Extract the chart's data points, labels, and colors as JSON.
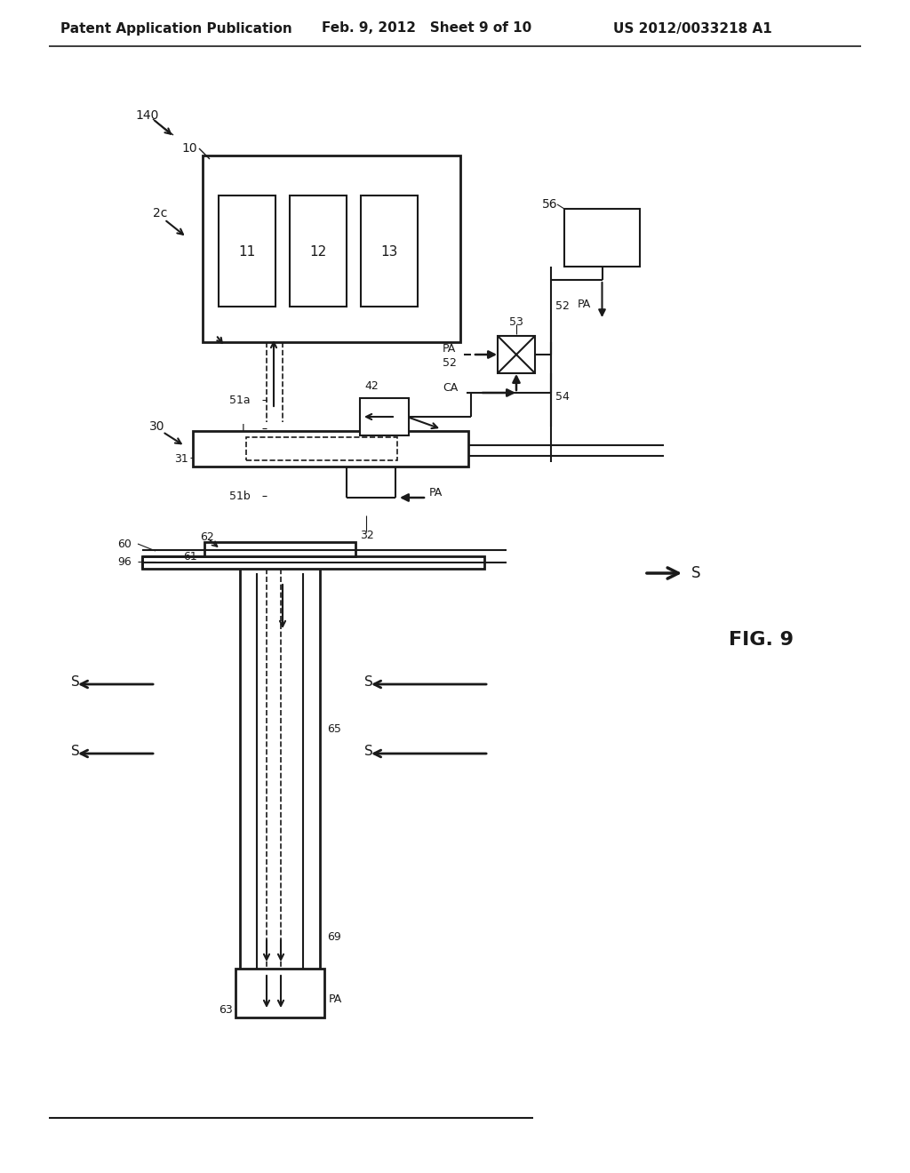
{
  "bg_color": "#ffffff",
  "line_color": "#1a1a1a",
  "header_left": "Patent Application Publication",
  "header_mid": "Feb. 9, 2012   Sheet 9 of 10",
  "header_right": "US 2012/0033218 A1",
  "fig_label": "FIG. 9"
}
